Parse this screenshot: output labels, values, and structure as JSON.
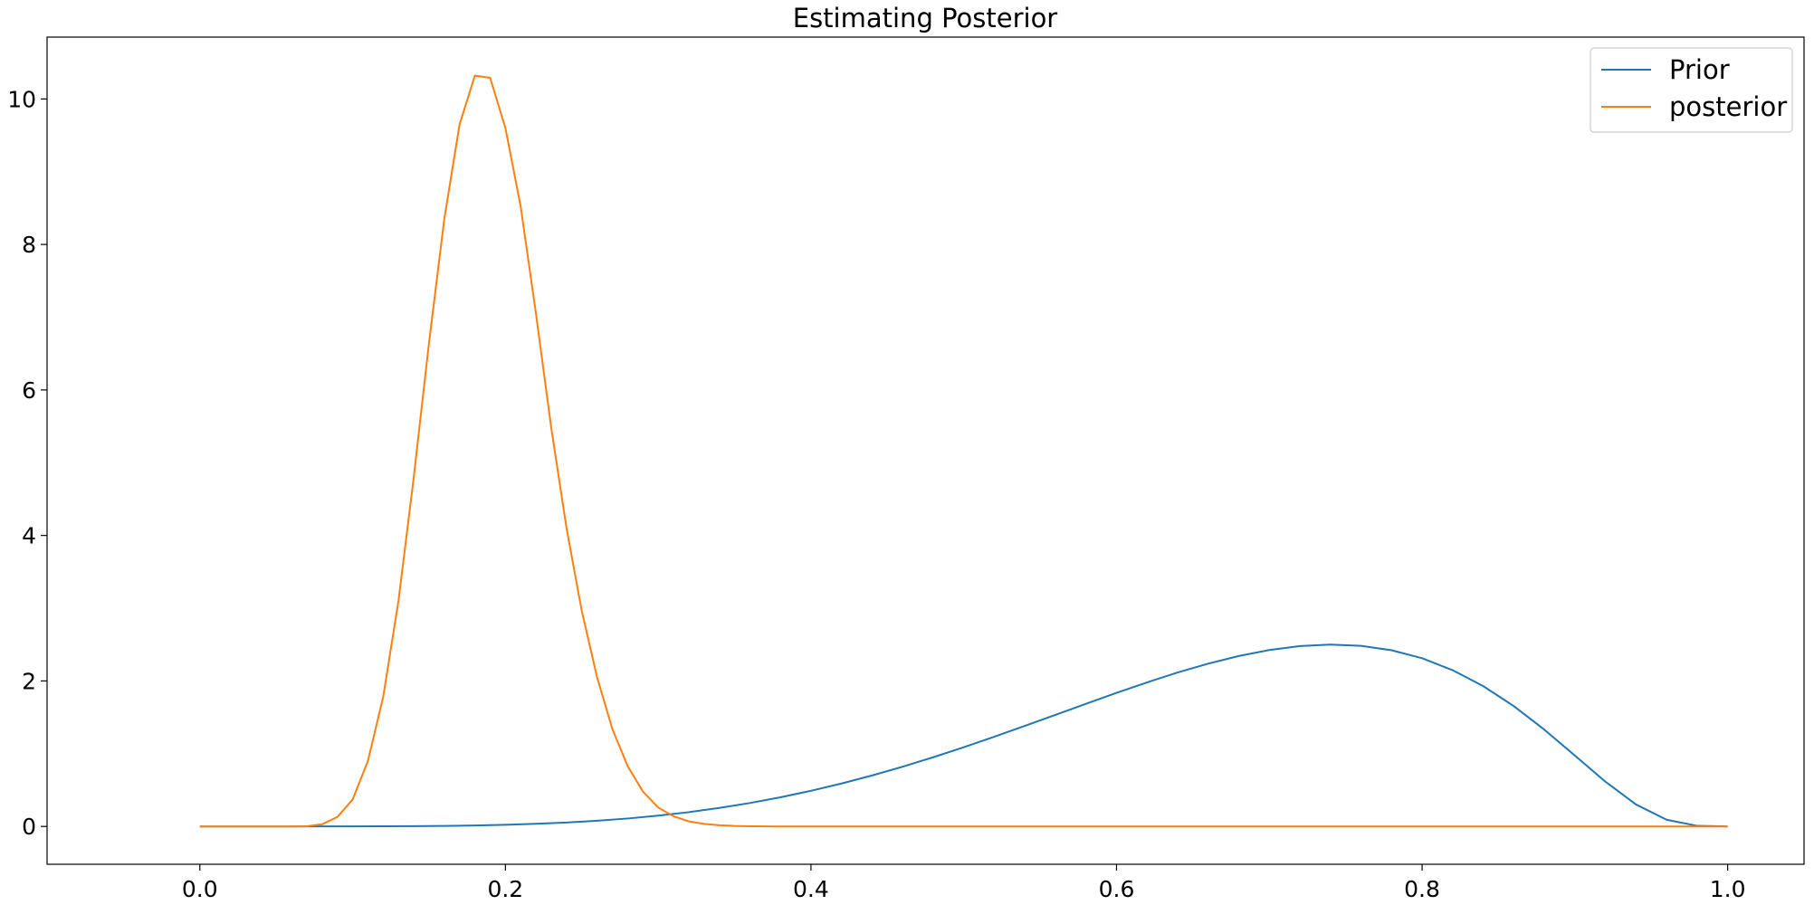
{
  "chart_data": {
    "type": "line",
    "title": "Estimating Posterior",
    "xlabel": "",
    "ylabel": "",
    "xlim": [
      -0.1,
      1.05
    ],
    "ylim": [
      -0.52,
      10.85
    ],
    "xticks": [
      0.0,
      0.2,
      0.4,
      0.6,
      0.8,
      1.0
    ],
    "xtick_labels": [
      "0.0",
      "0.2",
      "0.4",
      "0.6",
      "0.8",
      "1.0"
    ],
    "yticks": [
      0,
      2,
      4,
      6,
      8,
      10
    ],
    "ytick_labels": [
      "0",
      "2",
      "4",
      "6",
      "8",
      "10"
    ],
    "grid": false,
    "legend_position": "top-right",
    "series": [
      {
        "name": "Prior",
        "color": "#1f77b4",
        "x": [
          0.0,
          0.02,
          0.04,
          0.06,
          0.08,
          0.1,
          0.12,
          0.14,
          0.16,
          0.18,
          0.2,
          0.22,
          0.24,
          0.26,
          0.28,
          0.3,
          0.32,
          0.34,
          0.36,
          0.38,
          0.4,
          0.42,
          0.44,
          0.46,
          0.48,
          0.5,
          0.52,
          0.54,
          0.56,
          0.58,
          0.6,
          0.62,
          0.64,
          0.66,
          0.68,
          0.7,
          0.72,
          0.74,
          0.76,
          0.78,
          0.8,
          0.82,
          0.84,
          0.86,
          0.88,
          0.9,
          0.92,
          0.94,
          0.96,
          0.98,
          1.0
        ],
        "values": [
          0.0,
          0.0,
          0.0,
          0.0001,
          0.0003,
          0.0008,
          0.0019,
          0.0041,
          0.0078,
          0.0137,
          0.0229,
          0.036,
          0.054,
          0.078,
          0.109,
          0.148,
          0.196,
          0.254,
          0.322,
          0.401,
          0.49,
          0.59,
          0.701,
          0.821,
          0.951,
          1.089,
          1.233,
          1.382,
          1.534,
          1.686,
          1.836,
          1.98,
          2.116,
          2.238,
          2.343,
          2.425,
          2.479,
          2.5,
          2.483,
          2.422,
          2.312,
          2.148,
          1.929,
          1.655,
          1.331,
          0.974,
          0.615,
          0.302,
          0.093,
          0.008,
          0.0
        ]
      },
      {
        "name": "posterior",
        "color": "#ff7f0e",
        "x": [
          0.0,
          0.01,
          0.02,
          0.03,
          0.04,
          0.05,
          0.06,
          0.07,
          0.08,
          0.09,
          0.1,
          0.11,
          0.12,
          0.13,
          0.14,
          0.15,
          0.16,
          0.17,
          0.18,
          0.19,
          0.2,
          0.21,
          0.22,
          0.23,
          0.24,
          0.25,
          0.26,
          0.27,
          0.28,
          0.29,
          0.3,
          0.31,
          0.32,
          0.33,
          0.34,
          0.35,
          0.36,
          0.37,
          0.38,
          0.4,
          0.45,
          0.5,
          0.6,
          0.7,
          0.8,
          0.9,
          1.0
        ],
        "values": [
          0.0,
          0.0,
          0.0,
          0.0,
          0.0,
          0.0,
          0.0,
          0.003,
          0.03,
          0.13,
          0.37,
          0.9,
          1.78,
          3.1,
          4.8,
          6.65,
          8.35,
          9.65,
          10.32,
          10.29,
          9.6,
          8.52,
          7.05,
          5.48,
          4.1,
          2.96,
          2.05,
          1.34,
          0.83,
          0.48,
          0.26,
          0.14,
          0.07,
          0.035,
          0.016,
          0.007,
          0.003,
          0.001,
          0.0,
          0.0,
          0.0,
          0.0,
          0.0,
          0.0,
          0.0,
          0.0,
          0.0
        ]
      }
    ]
  }
}
